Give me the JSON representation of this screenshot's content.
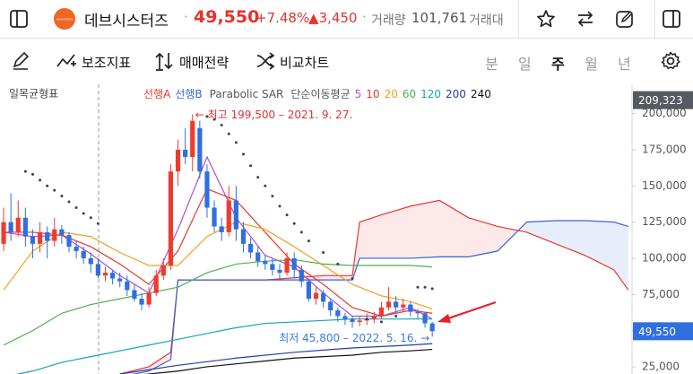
{
  "header": {
    "logo_text": "DEVSISTERS",
    "stock_name": "데브시스터즈",
    "separator": "·",
    "price": "49,550",
    "change_pct": "+7.48%",
    "change_amt": "▲3,450",
    "volume_label": "거래량",
    "volume": "101,761",
    "turnover_label": "거래대"
  },
  "toolbar": {
    "indicators": "보조지표",
    "strategy": "매매전략",
    "compare": "비교차트",
    "periods": [
      "분",
      "일",
      "주",
      "월",
      "년"
    ],
    "active_period": 2
  },
  "chart_data": {
    "type": "candlestick",
    "xlim": [
      -0.5,
      86.5
    ],
    "ylim": [
      20000,
      219000
    ],
    "yticks": [
      {
        "value": 25000,
        "label": "25,000"
      },
      {
        "value": 50000,
        "label": "50,000"
      },
      {
        "value": 75000,
        "label": "75,000"
      },
      {
        "value": 100000,
        "label": "100,000"
      },
      {
        "value": 125000,
        "label": "125,000"
      },
      {
        "value": 150000,
        "label": "150,000"
      },
      {
        "value": 175000,
        "label": "175,000"
      },
      {
        "value": 200000,
        "label": "200,000"
      }
    ],
    "grid": false,
    "up_color": "#ee3b30",
    "down_color": "#2f6fe0",
    "candles": {
      "open": [
        110000,
        125000,
        118000,
        128000,
        115000,
        110000,
        118000,
        112000,
        120000,
        116000,
        108000,
        105000,
        100000,
        96000,
        88000,
        90000,
        86000,
        84000,
        78000,
        72000,
        68000,
        76000,
        88000,
        95000,
        160000,
        175000,
        170000,
        190000,
        160000,
        135000,
        122000,
        118000,
        140000,
        120000,
        110000,
        104000,
        98000,
        96000,
        92000,
        90000,
        100000,
        92000,
        84000,
        72000,
        76000,
        70000,
        64000,
        60000,
        58000,
        56000,
        57000,
        58000,
        60000,
        66000,
        70000,
        66000,
        68000,
        63000,
        62000,
        55000
      ],
      "high": [
        135000,
        145000,
        140000,
        135000,
        120000,
        125000,
        122000,
        128000,
        123000,
        118000,
        112000,
        108000,
        104000,
        100000,
        94000,
        92000,
        90000,
        88000,
        82000,
        76000,
        80000,
        92000,
        100000,
        165000,
        182000,
        190000,
        199500,
        195000,
        165000,
        140000,
        128000,
        150000,
        150000,
        125000,
        114000,
        108000,
        102000,
        100000,
        96000,
        104000,
        104000,
        95000,
        86000,
        80000,
        78000,
        72000,
        66000,
        62000,
        60000,
        60000,
        62000,
        63000,
        70000,
        80000,
        74000,
        72000,
        70000,
        65000,
        63000,
        56000
      ],
      "low": [
        105000,
        112000,
        115000,
        108000,
        100000,
        104000,
        100000,
        108000,
        110000,
        104000,
        100000,
        96000,
        90000,
        86000,
        84000,
        82000,
        80000,
        74000,
        70000,
        64000,
        66000,
        74000,
        85000,
        92000,
        150000,
        165000,
        160000,
        155000,
        128000,
        118000,
        112000,
        115000,
        112000,
        104000,
        100000,
        94000,
        92000,
        88000,
        86000,
        88000,
        86000,
        80000,
        70000,
        68000,
        66000,
        60000,
        56000,
        54000,
        52000,
        53000,
        54000,
        55000,
        58000,
        64000,
        62000,
        63000,
        60000,
        58000,
        52000,
        45800
      ],
      "close": [
        125000,
        118000,
        128000,
        115000,
        110000,
        118000,
        112000,
        120000,
        116000,
        108000,
        105000,
        100000,
        96000,
        88000,
        90000,
        86000,
        84000,
        78000,
        72000,
        68000,
        76000,
        88000,
        95000,
        160000,
        175000,
        170000,
        195000,
        160000,
        135000,
        122000,
        118000,
        140000,
        120000,
        110000,
        104000,
        98000,
        96000,
        92000,
        90000,
        100000,
        92000,
        84000,
        72000,
        76000,
        70000,
        64000,
        60000,
        58000,
        56000,
        57000,
        58000,
        60000,
        66000,
        70000,
        66000,
        68000,
        63000,
        62000,
        55000,
        49550
      ]
    },
    "ma_name": "단순이동평균",
    "lines": [
      {
        "name": "5",
        "color": "#b04fd6",
        "x": [
          0,
          4,
          8,
          12,
          16,
          20,
          24,
          28,
          32,
          36,
          40,
          44,
          48,
          52,
          56,
          59
        ],
        "values": [
          118000,
          115000,
          116000,
          103000,
          88000,
          76000,
          120000,
          170000,
          128000,
          102000,
          94000,
          76000,
          60000,
          60000,
          66000,
          58000
        ]
      },
      {
        "name": "10",
        "color": "#e8392f",
        "x": [
          0,
          4,
          8,
          12,
          16,
          20,
          24,
          28,
          32,
          36,
          40,
          44,
          48,
          52,
          56,
          59
        ],
        "values": [
          118000,
          118000,
          116000,
          108000,
          96000,
          82000,
          105000,
          148000,
          140000,
          118000,
          96000,
          82000,
          66000,
          60000,
          64000,
          62000
        ]
      },
      {
        "name": "20",
        "color": "#f0a020",
        "x": [
          0,
          4,
          8,
          12,
          16,
          20,
          24,
          28,
          32,
          36,
          40,
          44,
          48,
          52,
          56,
          59
        ],
        "values": [
          78000,
          105000,
          118000,
          115000,
          104000,
          95000,
          95000,
          115000,
          125000,
          120000,
          108000,
          95000,
          82000,
          74000,
          70000,
          65000
        ]
      },
      {
        "name": "60",
        "color": "#4caf50",
        "x": [
          0,
          4,
          8,
          12,
          16,
          20,
          24,
          28,
          32,
          36,
          40,
          44,
          48,
          52,
          56,
          59
        ],
        "values": [
          40000,
          50000,
          62000,
          68000,
          72000,
          76000,
          80000,
          90000,
          96000,
          98000,
          99000,
          96000,
          95000,
          95000,
          95000,
          94000
        ]
      },
      {
        "name": "120",
        "color": "#17a2b8",
        "x": [
          0,
          4,
          8,
          12,
          16,
          20,
          24,
          28,
          32,
          36,
          40,
          44,
          48,
          52,
          56,
          59
        ],
        "values": [
          18000,
          22000,
          28000,
          32000,
          36000,
          40000,
          44000,
          48000,
          52000,
          55000,
          56000,
          57000,
          58000,
          58000,
          58000,
          58000
        ]
      },
      {
        "name": "200",
        "color": "#1f3fa8",
        "x": [
          16,
          24,
          32,
          40,
          48,
          56,
          59
        ],
        "values": [
          20000,
          26000,
          31000,
          35000,
          38000,
          40000,
          41000
        ]
      },
      {
        "name": "240",
        "color": "#111111",
        "x": [
          18,
          24,
          28,
          32,
          36,
          40,
          44,
          48,
          52,
          56,
          59
        ],
        "values": [
          19000,
          22000,
          25000,
          27000,
          29000,
          31000,
          32000,
          33000,
          35000,
          36000,
          37000
        ]
      }
    ],
    "cloud": {
      "name": "일목균형표",
      "fill_colors": [
        "rgba(240,120,120,0.16)",
        "rgba(110,140,230,0.16)"
      ],
      "x": [
        16,
        20,
        23,
        24,
        30,
        36,
        44,
        48,
        49,
        52,
        56,
        60,
        64,
        68,
        72,
        76,
        80,
        84,
        86
      ],
      "series": [
        {
          "name": "선행A",
          "color": "#e8392f",
          "values": [
            20000,
            25000,
            35000,
            85000,
            85000,
            85000,
            88000,
            88000,
            125000,
            130000,
            136000,
            140000,
            128000,
            122000,
            118000,
            110000,
            102000,
            92000,
            78000
          ]
        },
        {
          "name": "선행B",
          "color": "#3a63d8",
          "values": [
            18000,
            22000,
            30000,
            85000,
            85000,
            85000,
            85000,
            85000,
            100000,
            100000,
            100000,
            101000,
            101000,
            105000,
            125000,
            126000,
            126000,
            125000,
            122000
          ]
        }
      ]
    },
    "sar": {
      "name": "Parabolic SAR",
      "color": "#3a4150",
      "x": [
        3,
        4,
        5,
        6,
        7,
        8,
        9,
        10,
        11,
        12,
        13,
        28,
        29,
        30,
        31,
        32,
        33,
        34,
        35,
        36,
        37,
        38,
        39,
        40,
        41,
        42,
        44,
        46,
        48,
        50,
        52,
        54,
        57,
        58,
        59
      ],
      "values": [
        160000,
        158000,
        154000,
        150000,
        147000,
        143000,
        139000,
        135000,
        131000,
        128000,
        124000,
        198000,
        196000,
        192000,
        186000,
        180000,
        172000,
        164000,
        156000,
        150000,
        143000,
        136000,
        130000,
        124000,
        118000,
        112000,
        104000,
        96000,
        86000,
        58000,
        56000,
        60000,
        80000,
        80000,
        79000
      ]
    },
    "annotations": [
      {
        "text": "← 최고 199,500 – 2021. 9. 27.",
        "color": "#e5322d"
      },
      {
        "text": "최저 45,800 – 2022. 5. 16. →",
        "color": "#3b7be0"
      }
    ],
    "cursor_price": {
      "value": 209323,
      "label": "209,323"
    },
    "last_price": {
      "value": 49550,
      "label": "49,550"
    }
  }
}
